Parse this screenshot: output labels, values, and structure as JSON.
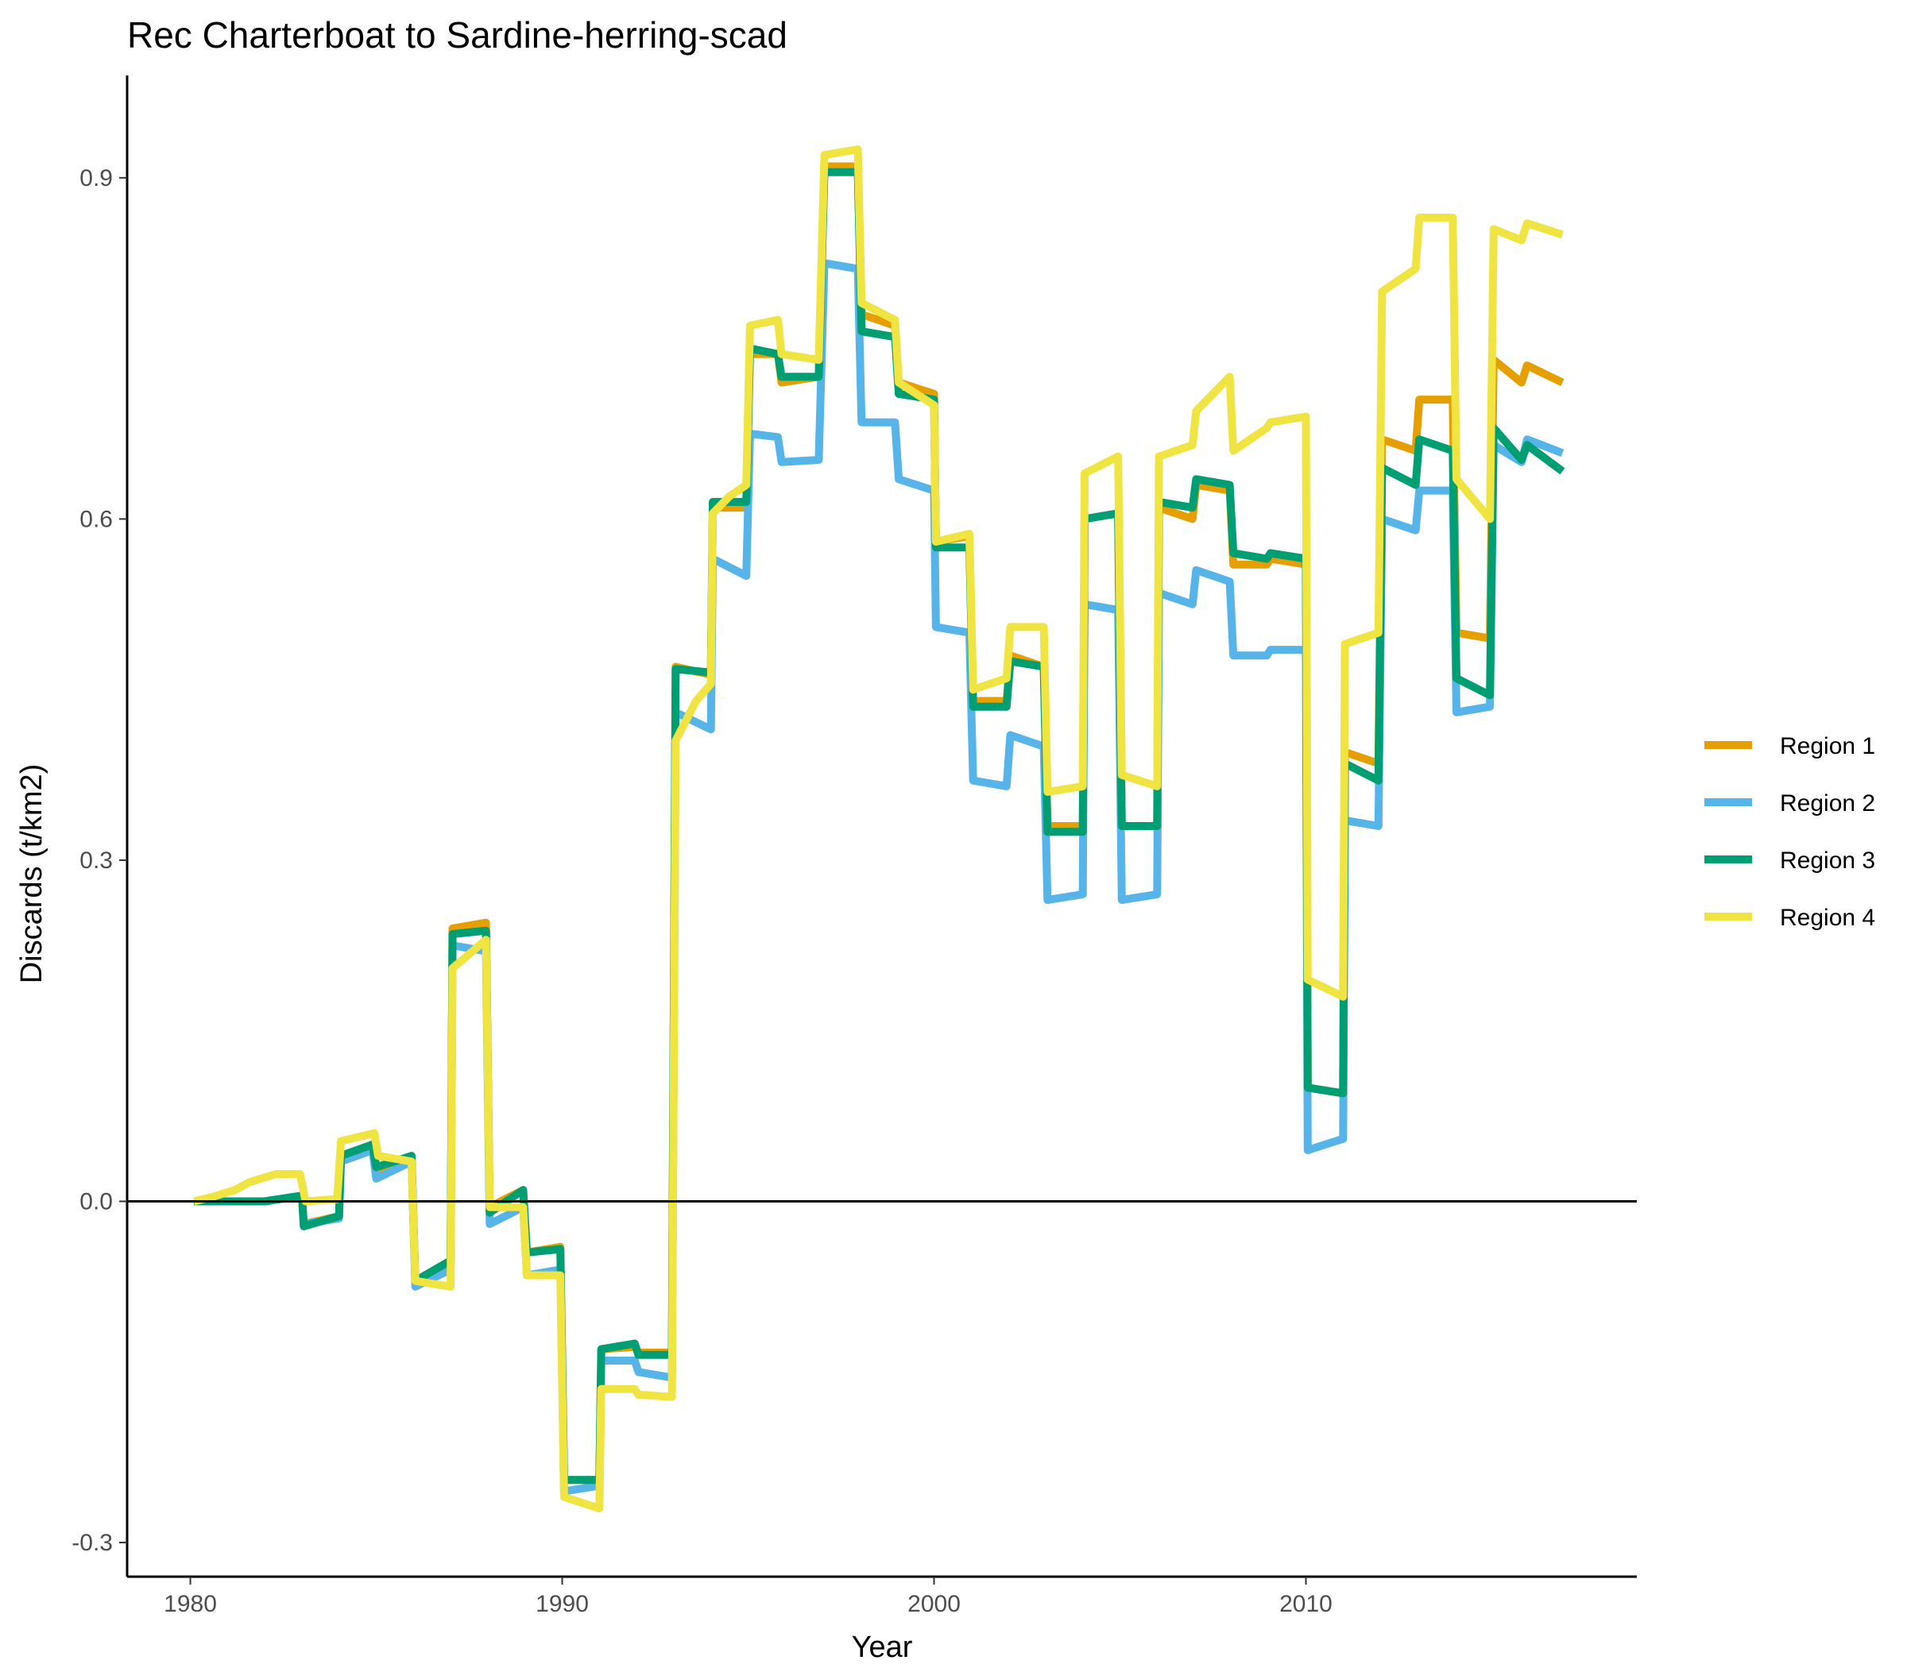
{
  "chart_data": {
    "type": "line",
    "title": "Rec Charterboat to Sardine-herring-scad",
    "xlabel": "Year",
    "ylabel": "Discards (t/km2)",
    "xlim": [
      1978.3,
      2018.9
    ],
    "ylim": [
      -0.33,
      0.99
    ],
    "x_ticks": [
      1980,
      1990,
      2000,
      2010
    ],
    "x_tick_labels": [
      "1980",
      "1990",
      "2000",
      "2010"
    ],
    "y_ticks": [
      -0.3,
      0.0,
      0.3,
      0.6,
      0.9
    ],
    "y_tick_labels": [
      "-0.3",
      "0.0",
      "0.3",
      "0.6",
      "0.9"
    ],
    "zero_line": 0,
    "grid": false,
    "legend_position": "right",
    "series": [
      {
        "name": "Region 1",
        "color": "#E69F00",
        "points": [
          [
            1980.1,
            0.0
          ],
          [
            1981,
            0.0
          ],
          [
            1982,
            0.0
          ],
          [
            1983,
            0.005
          ],
          [
            1983.05,
            -0.02
          ],
          [
            1984,
            -0.013
          ],
          [
            1984.05,
            0.04
          ],
          [
            1984.9,
            0.05
          ],
          [
            1985,
            0.025
          ],
          [
            1985.95,
            0.035
          ],
          [
            1986.05,
            -0.07
          ],
          [
            1987,
            -0.055
          ],
          [
            1987.05,
            0.24
          ],
          [
            1987.95,
            0.245
          ],
          [
            1988.05,
            -0.005
          ],
          [
            1988.95,
            0.01
          ],
          [
            1989.05,
            -0.045
          ],
          [
            1989.95,
            -0.04
          ],
          [
            1990.05,
            -0.245
          ],
          [
            1991,
            -0.245
          ],
          [
            1991.05,
            -0.13
          ],
          [
            1991.95,
            -0.128
          ],
          [
            1992.05,
            -0.133
          ],
          [
            1992.95,
            -0.133
          ],
          [
            1993.05,
            0.47
          ],
          [
            1994,
            0.463
          ],
          [
            1994.05,
            0.61
          ],
          [
            1994.95,
            0.61
          ],
          [
            1995.05,
            0.745
          ],
          [
            1995.8,
            0.745
          ],
          [
            1995.9,
            0.72
          ],
          [
            1996.9,
            0.725
          ],
          [
            1997.05,
            0.91
          ],
          [
            1997.95,
            0.91
          ],
          [
            1998.05,
            0.78
          ],
          [
            1998.95,
            0.77
          ],
          [
            1999.05,
            0.72
          ],
          [
            2000,
            0.71
          ],
          [
            2000.05,
            0.58
          ],
          [
            2000.95,
            0.585
          ],
          [
            2001.05,
            0.44
          ],
          [
            2001.95,
            0.44
          ],
          [
            2002.05,
            0.48
          ],
          [
            2002.95,
            0.47
          ],
          [
            2003.05,
            0.33
          ],
          [
            2004,
            0.33
          ],
          [
            2004.05,
            0.6
          ],
          [
            2004.95,
            0.605
          ],
          [
            2005.05,
            0.33
          ],
          [
            2006,
            0.33
          ],
          [
            2006.05,
            0.61
          ],
          [
            2006.95,
            0.6
          ],
          [
            2007.05,
            0.63
          ],
          [
            2007.95,
            0.625
          ],
          [
            2008.05,
            0.56
          ],
          [
            2008.95,
            0.56
          ],
          [
            2009.05,
            0.565
          ],
          [
            2010,
            0.56
          ],
          [
            2010.05,
            0.1
          ],
          [
            2011,
            0.095
          ],
          [
            2011.05,
            0.395
          ],
          [
            2011.95,
            0.385
          ],
          [
            2012.05,
            0.67
          ],
          [
            2012.95,
            0.66
          ],
          [
            2013.05,
            0.705
          ],
          [
            2013.95,
            0.705
          ],
          [
            2014.05,
            0.5
          ],
          [
            2014.95,
            0.495
          ],
          [
            2015.05,
            0.74
          ],
          [
            2015.8,
            0.72
          ],
          [
            2015.95,
            0.735
          ],
          [
            2016.9,
            0.72
          ]
        ]
      },
      {
        "name": "Region 2",
        "color": "#56B4E9",
        "points": [
          [
            1980.1,
            0.0
          ],
          [
            1981,
            0.0
          ],
          [
            1982,
            0.0
          ],
          [
            1983,
            0.005
          ],
          [
            1983.05,
            -0.02
          ],
          [
            1984,
            -0.015
          ],
          [
            1984.05,
            0.035
          ],
          [
            1984.9,
            0.045
          ],
          [
            1985,
            0.02
          ],
          [
            1985.95,
            0.035
          ],
          [
            1986.05,
            -0.075
          ],
          [
            1987,
            -0.06
          ],
          [
            1987.05,
            0.225
          ],
          [
            1987.95,
            0.22
          ],
          [
            1988.05,
            -0.02
          ],
          [
            1988.95,
            -0.005
          ],
          [
            1989.05,
            -0.065
          ],
          [
            1989.95,
            -0.06
          ],
          [
            1990.05,
            -0.255
          ],
          [
            1991,
            -0.25
          ],
          [
            1991.05,
            -0.14
          ],
          [
            1991.95,
            -0.14
          ],
          [
            1992.05,
            -0.15
          ],
          [
            1992.95,
            -0.155
          ],
          [
            1993.05,
            0.43
          ],
          [
            1994,
            0.415
          ],
          [
            1994.05,
            0.565
          ],
          [
            1994.95,
            0.55
          ],
          [
            1995.05,
            0.675
          ],
          [
            1995.8,
            0.672
          ],
          [
            1995.9,
            0.65
          ],
          [
            1996.9,
            0.652
          ],
          [
            1997.05,
            0.825
          ],
          [
            1997.95,
            0.82
          ],
          [
            1998.05,
            0.685
          ],
          [
            1998.95,
            0.685
          ],
          [
            1999.05,
            0.635
          ],
          [
            2000,
            0.625
          ],
          [
            2000.05,
            0.505
          ],
          [
            2000.95,
            0.5
          ],
          [
            2001.05,
            0.37
          ],
          [
            2001.95,
            0.365
          ],
          [
            2002.05,
            0.41
          ],
          [
            2002.95,
            0.4
          ],
          [
            2003.05,
            0.265
          ],
          [
            2004,
            0.27
          ],
          [
            2004.05,
            0.525
          ],
          [
            2004.95,
            0.52
          ],
          [
            2005.05,
            0.265
          ],
          [
            2006,
            0.27
          ],
          [
            2006.05,
            0.535
          ],
          [
            2006.95,
            0.525
          ],
          [
            2007.05,
            0.555
          ],
          [
            2007.95,
            0.545
          ],
          [
            2008.05,
            0.48
          ],
          [
            2008.95,
            0.48
          ],
          [
            2009.05,
            0.485
          ],
          [
            2010,
            0.485
          ],
          [
            2010.05,
            0.045
          ],
          [
            2011,
            0.055
          ],
          [
            2011.05,
            0.335
          ],
          [
            2011.95,
            0.33
          ],
          [
            2012.05,
            0.6
          ],
          [
            2012.95,
            0.59
          ],
          [
            2013.05,
            0.625
          ],
          [
            2013.95,
            0.625
          ],
          [
            2014.05,
            0.43
          ],
          [
            2014.95,
            0.435
          ],
          [
            2015.05,
            0.665
          ],
          [
            2015.8,
            0.65
          ],
          [
            2015.95,
            0.67
          ],
          [
            2016.9,
            0.658
          ]
        ]
      },
      {
        "name": "Region 3",
        "color": "#009E73",
        "points": [
          [
            1980.1,
            0.0
          ],
          [
            1981,
            0.0
          ],
          [
            1982,
            0.0
          ],
          [
            1983,
            0.005
          ],
          [
            1983.05,
            -0.022
          ],
          [
            1984,
            -0.013
          ],
          [
            1984.05,
            0.04
          ],
          [
            1984.9,
            0.05
          ],
          [
            1985,
            0.03
          ],
          [
            1985.95,
            0.04
          ],
          [
            1986.05,
            -0.07
          ],
          [
            1987,
            -0.052
          ],
          [
            1987.05,
            0.235
          ],
          [
            1987.95,
            0.238
          ],
          [
            1988.05,
            -0.01
          ],
          [
            1988.95,
            0.01
          ],
          [
            1989.05,
            -0.045
          ],
          [
            1989.95,
            -0.042
          ],
          [
            1990.05,
            -0.245
          ],
          [
            1991,
            -0.245
          ],
          [
            1991.05,
            -0.13
          ],
          [
            1991.95,
            -0.125
          ],
          [
            1992.05,
            -0.135
          ],
          [
            1992.95,
            -0.135
          ],
          [
            1993.05,
            0.468
          ],
          [
            1994,
            0.465
          ],
          [
            1994.05,
            0.615
          ],
          [
            1994.95,
            0.615
          ],
          [
            1995.05,
            0.75
          ],
          [
            1995.8,
            0.745
          ],
          [
            1995.9,
            0.725
          ],
          [
            1996.9,
            0.725
          ],
          [
            1997.05,
            0.905
          ],
          [
            1997.95,
            0.905
          ],
          [
            1998.05,
            0.765
          ],
          [
            1998.95,
            0.76
          ],
          [
            1999.05,
            0.71
          ],
          [
            2000,
            0.705
          ],
          [
            2000.05,
            0.575
          ],
          [
            2000.95,
            0.575
          ],
          [
            2001.05,
            0.435
          ],
          [
            2001.95,
            0.435
          ],
          [
            2002.05,
            0.475
          ],
          [
            2002.95,
            0.47
          ],
          [
            2003.05,
            0.325
          ],
          [
            2004,
            0.325
          ],
          [
            2004.05,
            0.6
          ],
          [
            2004.95,
            0.605
          ],
          [
            2005.05,
            0.33
          ],
          [
            2006,
            0.33
          ],
          [
            2006.05,
            0.615
          ],
          [
            2006.95,
            0.61
          ],
          [
            2007.05,
            0.635
          ],
          [
            2007.95,
            0.63
          ],
          [
            2008.05,
            0.57
          ],
          [
            2008.95,
            0.565
          ],
          [
            2009.05,
            0.57
          ],
          [
            2010,
            0.565
          ],
          [
            2010.05,
            0.1
          ],
          [
            2011,
            0.095
          ],
          [
            2011.05,
            0.385
          ],
          [
            2011.95,
            0.37
          ],
          [
            2012.05,
            0.645
          ],
          [
            2012.95,
            0.63
          ],
          [
            2013.05,
            0.67
          ],
          [
            2013.95,
            0.66
          ],
          [
            2014.05,
            0.46
          ],
          [
            2014.95,
            0.445
          ],
          [
            2015.05,
            0.68
          ],
          [
            2015.8,
            0.652
          ],
          [
            2015.95,
            0.665
          ],
          [
            2016.9,
            0.642
          ]
        ]
      },
      {
        "name": "Region 4",
        "color": "#F0E442",
        "points": [
          [
            1980.1,
            0.0
          ],
          [
            1980.6,
            0.004
          ],
          [
            1981.2,
            0.01
          ],
          [
            1981.6,
            0.017
          ],
          [
            1982.3,
            0.024
          ],
          [
            1982.95,
            0.024
          ],
          [
            1983.1,
            0.0
          ],
          [
            1983.95,
            0.002
          ],
          [
            1984.05,
            0.053
          ],
          [
            1984.95,
            0.06
          ],
          [
            1985.05,
            0.04
          ],
          [
            1985.95,
            0.035
          ],
          [
            1986.05,
            -0.07
          ],
          [
            1987,
            -0.075
          ],
          [
            1987.05,
            0.205
          ],
          [
            1987.95,
            0.23
          ],
          [
            1988.05,
            -0.005
          ],
          [
            1988.95,
            -0.005
          ],
          [
            1989.05,
            -0.065
          ],
          [
            1989.95,
            -0.065
          ],
          [
            1990.05,
            -0.26
          ],
          [
            1991,
            -0.27
          ],
          [
            1991.05,
            -0.165
          ],
          [
            1991.95,
            -0.165
          ],
          [
            1992.05,
            -0.17
          ],
          [
            1992.95,
            -0.172
          ],
          [
            1993.05,
            0.405
          ],
          [
            1993.6,
            0.44
          ],
          [
            1994,
            0.455
          ],
          [
            1994.05,
            0.605
          ],
          [
            1994.5,
            0.62
          ],
          [
            1994.95,
            0.63
          ],
          [
            1995.05,
            0.77
          ],
          [
            1995.8,
            0.775
          ],
          [
            1995.9,
            0.745
          ],
          [
            1996.9,
            0.74
          ],
          [
            1997.05,
            0.92
          ],
          [
            1997.95,
            0.925
          ],
          [
            1998.05,
            0.79
          ],
          [
            1998.95,
            0.775
          ],
          [
            1999.05,
            0.72
          ],
          [
            2000,
            0.7
          ],
          [
            2000.05,
            0.58
          ],
          [
            2000.95,
            0.587
          ],
          [
            2001.05,
            0.45
          ],
          [
            2001.95,
            0.46
          ],
          [
            2002.05,
            0.505
          ],
          [
            2002.95,
            0.505
          ],
          [
            2003.05,
            0.36
          ],
          [
            2004,
            0.365
          ],
          [
            2004.05,
            0.64
          ],
          [
            2004.95,
            0.655
          ],
          [
            2005.05,
            0.375
          ],
          [
            2006,
            0.365
          ],
          [
            2006.05,
            0.655
          ],
          [
            2006.95,
            0.665
          ],
          [
            2007.05,
            0.695
          ],
          [
            2007.95,
            0.725
          ],
          [
            2008.05,
            0.66
          ],
          [
            2008.95,
            0.68
          ],
          [
            2009.05,
            0.685
          ],
          [
            2010,
            0.69
          ],
          [
            2010.05,
            0.195
          ],
          [
            2011,
            0.18
          ],
          [
            2011.05,
            0.49
          ],
          [
            2011.95,
            0.5
          ],
          [
            2012.05,
            0.8
          ],
          [
            2012.95,
            0.82
          ],
          [
            2013.05,
            0.865
          ],
          [
            2013.95,
            0.865
          ],
          [
            2014.05,
            0.635
          ],
          [
            2014.95,
            0.6
          ],
          [
            2015.05,
            0.855
          ],
          [
            2015.8,
            0.845
          ],
          [
            2015.95,
            0.86
          ],
          [
            2016.9,
            0.85
          ]
        ]
      }
    ]
  }
}
